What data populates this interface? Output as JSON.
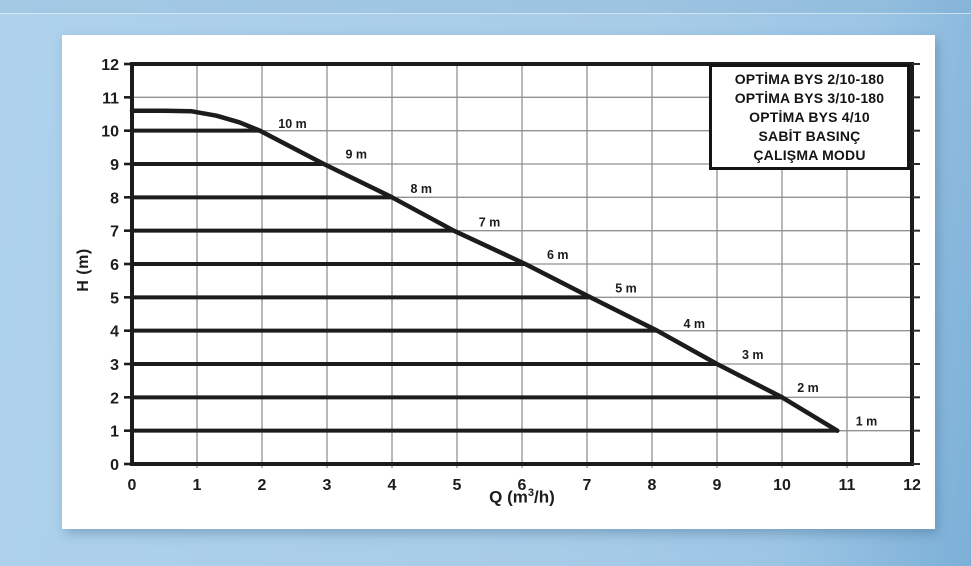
{
  "colors": {
    "background_base": "#a7cce8",
    "background_edge": "#7db0d8",
    "card": "#ffffff",
    "line": "#1c1c1c",
    "grid": "#919191",
    "text": "#1c1c1c"
  },
  "chart_data": {
    "type": "line",
    "title": "",
    "xlabel": {
      "prefix": "Q (m",
      "sup": "3",
      "suffix": "/h)"
    },
    "ylabel": "H (m)",
    "xlim": [
      0,
      12
    ],
    "ylim": [
      0,
      12
    ],
    "grid": true,
    "xticks": [
      "0",
      "1",
      "2",
      "3",
      "4",
      "5",
      "6",
      "7",
      "8",
      "9",
      "10",
      "11",
      "12"
    ],
    "yticks": [
      "0",
      "1",
      "2",
      "3",
      "4",
      "5",
      "6",
      "7",
      "8",
      "9",
      "10",
      "11",
      "12"
    ],
    "legend": {
      "position": "top-right",
      "lines": [
        "OPTİMA BYS 2/10-180",
        "OPTİMA BYS 3/10-180",
        "OPTİMA BYS 4/10",
        "SABİT BASINÇ",
        "ÇALIŞMA MODU"
      ]
    },
    "curve": {
      "name": "pump-head-curve",
      "points": [
        [
          0,
          10.6
        ],
        [
          0.5,
          10.6
        ],
        [
          0.92,
          10.58
        ],
        [
          1.3,
          10.45
        ],
        [
          1.65,
          10.25
        ],
        [
          1.97,
          10.0
        ],
        [
          2.95,
          9.0
        ],
        [
          4.0,
          8.0
        ],
        [
          4.95,
          7.0
        ],
        [
          6.05,
          6.0
        ],
        [
          7.05,
          5.0
        ],
        [
          8.08,
          4.0
        ],
        [
          9.0,
          3.0
        ],
        [
          10.0,
          2.0
        ],
        [
          10.85,
          1.0
        ]
      ]
    },
    "pressure_lines": [
      {
        "h": 10,
        "x_end": 1.97,
        "label": "10 m",
        "label_x": 2.47,
        "label_y": 10.2
      },
      {
        "h": 9,
        "x_end": 2.95,
        "label": "9 m",
        "label_x": 3.45,
        "label_y": 9.28
      },
      {
        "h": 8,
        "x_end": 4.0,
        "label": "8 m",
        "label_x": 4.45,
        "label_y": 8.25
      },
      {
        "h": 7,
        "x_end": 4.95,
        "label": "7 m",
        "label_x": 5.5,
        "label_y": 7.25
      },
      {
        "h": 6,
        "x_end": 6.05,
        "label": "6 m",
        "label_x": 6.55,
        "label_y": 6.27
      },
      {
        "h": 5,
        "x_end": 7.05,
        "label": "5 m",
        "label_x": 7.6,
        "label_y": 5.27
      },
      {
        "h": 4,
        "x_end": 8.08,
        "label": "4 m",
        "label_x": 8.65,
        "label_y": 4.2
      },
      {
        "h": 3,
        "x_end": 9.0,
        "label": "3 m",
        "label_x": 9.55,
        "label_y": 3.27
      },
      {
        "h": 2,
        "x_end": 10.0,
        "label": "2 m",
        "label_x": 10.4,
        "label_y": 2.28
      },
      {
        "h": 1,
        "x_end": 10.85,
        "label": "1 m",
        "label_x": 11.3,
        "label_y": 1.27
      }
    ]
  }
}
